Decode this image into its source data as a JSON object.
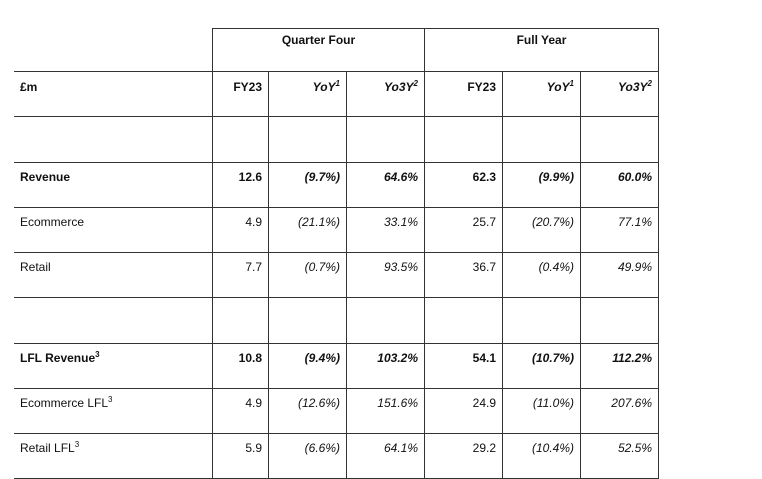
{
  "unit_label": "£m",
  "groups": {
    "quarter": "Quarter Four",
    "full_year": "Full Year"
  },
  "columns": {
    "fy23": "FY23",
    "yoy": "YoY",
    "yoy_note": "1",
    "yo3y": "Yo3Y",
    "yo3y_note": "2"
  },
  "rows": [
    {
      "label": "Revenue",
      "note": "",
      "q": [
        "12.6",
        "(9.7%)",
        "64.6%"
      ],
      "fy": [
        "62.3",
        "(9.9%)",
        "60.0%"
      ]
    },
    {
      "label": "Ecommerce",
      "note": "",
      "q": [
        "4.9",
        "(21.1%)",
        "33.1%"
      ],
      "fy": [
        "25.7",
        "(20.7%)",
        "77.1%"
      ]
    },
    {
      "label": "Retail",
      "note": "",
      "q": [
        "7.7",
        "(0.7%)",
        "93.5%"
      ],
      "fy": [
        "36.7",
        "(0.4%)",
        "49.9%"
      ]
    },
    {
      "label": "LFL Revenue",
      "note": "3",
      "q": [
        "10.8",
        "(9.4%)",
        "103.2%"
      ],
      "fy": [
        "54.1",
        "(10.7%)",
        "112.2%"
      ]
    },
    {
      "label": "Ecommerce LFL",
      "note": "3",
      "q": [
        "4.9",
        "(12.6%)",
        "151.6%"
      ],
      "fy": [
        "24.9",
        "(11.0%)",
        "207.6%"
      ]
    },
    {
      "label": "Retail LFL",
      "note": "3",
      "q": [
        "5.9",
        "(6.6%)",
        "64.1%"
      ],
      "fy": [
        "29.2",
        "(10.4%)",
        "52.5%"
      ]
    }
  ]
}
